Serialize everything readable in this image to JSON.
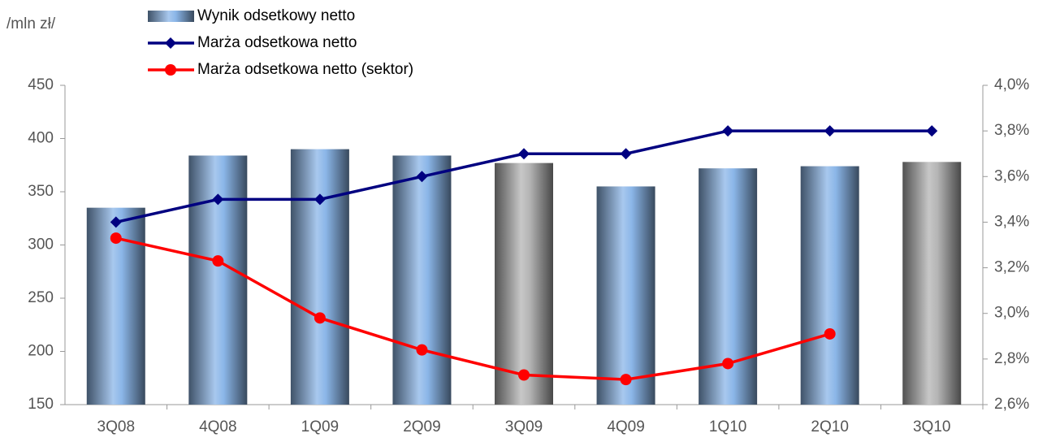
{
  "chart_data": {
    "type": "bar_line",
    "unit_label": "/mln zł/",
    "categories": [
      "3Q08",
      "4Q08",
      "1Q09",
      "2Q09",
      "3Q09",
      "4Q09",
      "1Q10",
      "2Q10",
      "3Q10"
    ],
    "series": [
      {
        "name": "Wynik odsetkowy netto",
        "type": "bar",
        "axis": "y",
        "color": "#8bb6e8",
        "colors": [
          "#8bb6e8",
          "#8bb6e8",
          "#8bb6e8",
          "#8bb6e8",
          "#b4b4b4",
          "#8bb6e8",
          "#8bb6e8",
          "#8bb6e8",
          "#b4b4b4"
        ],
        "values": [
          335,
          384,
          390,
          384,
          377,
          355,
          372,
          374,
          378
        ]
      },
      {
        "name": "Marża odsetkowa netto",
        "type": "line",
        "axis": "y2",
        "color": "#000080",
        "marker": "diamond",
        "values": [
          3.4,
          3.5,
          3.5,
          3.6,
          3.7,
          3.7,
          3.8,
          3.8,
          3.8
        ]
      },
      {
        "name": "Marża odsetkowa netto (sektor)",
        "type": "line",
        "axis": "y2",
        "color": "#ff0000",
        "marker": "circle",
        "values": [
          3.33,
          3.23,
          2.98,
          2.84,
          2.73,
          2.71,
          2.78,
          2.91,
          null
        ]
      }
    ],
    "ylim": [
      150,
      450
    ],
    "yticks": [
      150,
      200,
      250,
      300,
      350,
      400,
      450
    ],
    "y2lim": [
      2.6,
      4.0
    ],
    "y2ticks": [
      {
        "value": 2.6,
        "label": "2,6%"
      },
      {
        "value": 2.8,
        "label": "2,8%"
      },
      {
        "value": 3.0,
        "label": "3,0%"
      },
      {
        "value": 3.2,
        "label": "3,2%"
      },
      {
        "value": 3.4,
        "label": "3,4%"
      },
      {
        "value": 3.6,
        "label": "3,6%"
      },
      {
        "value": 3.8,
        "label": "3,8%"
      },
      {
        "value": 4.0,
        "label": "4,0%"
      }
    ],
    "grid": false
  }
}
